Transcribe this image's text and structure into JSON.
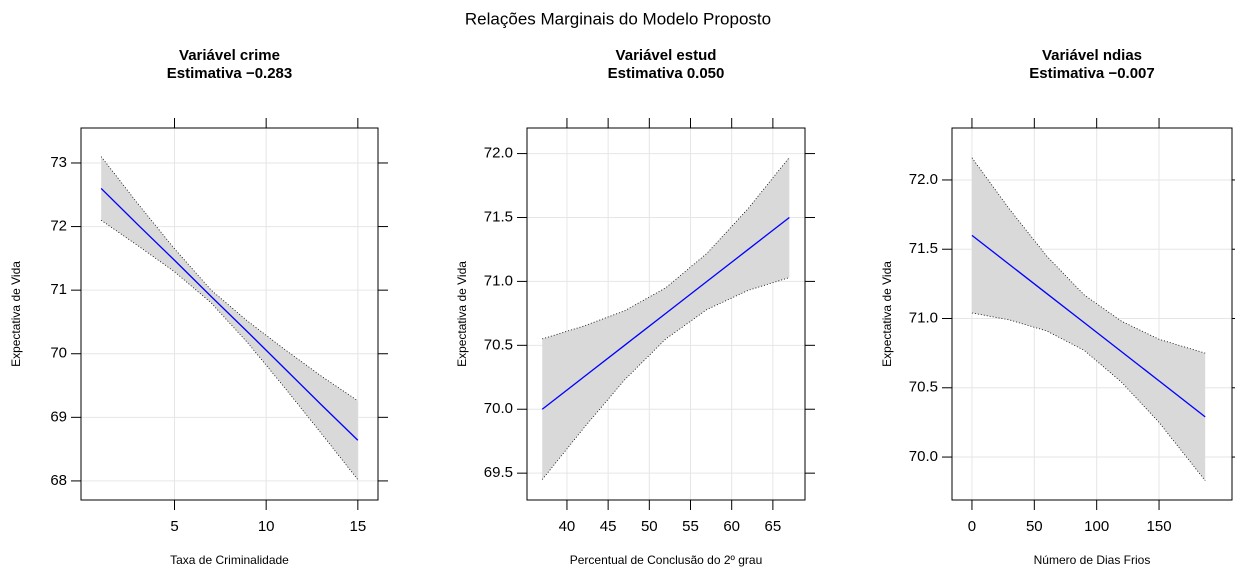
{
  "title": "Relações Marginais do Modelo Proposto",
  "chart_data": [
    {
      "type": "line",
      "title": "Variável crime",
      "subtitle": "Estimativa −0.283",
      "xlabel": "Taxa de Criminalidade",
      "ylabel": "Expectativa de Vida",
      "x": [
        1,
        3,
        5,
        7,
        9,
        11,
        13,
        15
      ],
      "values": [
        72.6,
        72.03,
        71.47,
        70.9,
        70.34,
        69.77,
        69.2,
        68.64
      ],
      "upper": [
        73.1,
        72.36,
        71.65,
        71.0,
        70.51,
        70.07,
        69.65,
        69.26
      ],
      "lower": [
        72.1,
        71.7,
        71.29,
        70.8,
        70.17,
        69.47,
        68.75,
        68.02
      ],
      "color": "#0000ff",
      "band_color": "#d9d9d9",
      "xlim": [
        -0.1,
        16.1
      ],
      "ylim": [
        67.7,
        73.55
      ],
      "xticks": [
        5,
        10,
        15
      ],
      "yticks": [
        68,
        69,
        70,
        71,
        72,
        73
      ],
      "grid": true
    },
    {
      "type": "line",
      "title": "Variável estud",
      "subtitle": "Estimativa 0.050",
      "xlabel": "Percentual de Conclusão do 2º grau",
      "ylabel": "Expectativa de Vida",
      "x": [
        37,
        42,
        47,
        52,
        57,
        62,
        67
      ],
      "values": [
        70.0,
        70.25,
        70.5,
        70.75,
        71.0,
        71.25,
        71.5
      ],
      "upper": [
        70.55,
        70.65,
        70.77,
        70.95,
        71.22,
        71.57,
        71.97
      ],
      "lower": [
        69.45,
        69.85,
        70.23,
        70.55,
        70.78,
        70.93,
        71.03
      ],
      "color": "#0000ff",
      "band_color": "#d9d9d9",
      "xlim": [
        35.15,
        68.9
      ],
      "ylim": [
        69.29,
        72.2
      ],
      "xticks": [
        40,
        45,
        50,
        55,
        60,
        65
      ],
      "yticks": [
        69.5,
        {
          "value": 70,
          "label": "70.0"
        },
        70.5,
        {
          "value": 71,
          "label": "71.0"
        },
        71.5,
        {
          "value": 72,
          "label": "72.0"
        }
      ],
      "grid": true
    },
    {
      "type": "line",
      "title": "Variável ndias",
      "subtitle": "Estimativa −0.007",
      "xlabel": "Número de Dias Frios",
      "ylabel": "Expectativa de Vida",
      "x": [
        0,
        30,
        60,
        90,
        120,
        150,
        187
      ],
      "values": [
        71.6,
        71.39,
        71.18,
        70.97,
        70.76,
        70.55,
        70.29
      ],
      "upper": [
        72.16,
        71.79,
        71.45,
        71.17,
        70.98,
        70.85,
        70.75
      ],
      "lower": [
        71.04,
        70.99,
        70.91,
        70.77,
        70.54,
        70.25,
        69.83
      ],
      "color": "#0000ff",
      "band_color": "#d9d9d9",
      "xlim": [
        -16,
        208.5
      ],
      "ylim": [
        69.69,
        72.375
      ],
      "xticks": [
        0,
        50,
        100,
        150
      ],
      "yticks": [
        {
          "value": 70,
          "label": "70.0"
        },
        70.5,
        {
          "value": 71,
          "label": "71.0"
        },
        71.5,
        {
          "value": 72,
          "label": "72.0"
        }
      ],
      "grid": true
    }
  ]
}
